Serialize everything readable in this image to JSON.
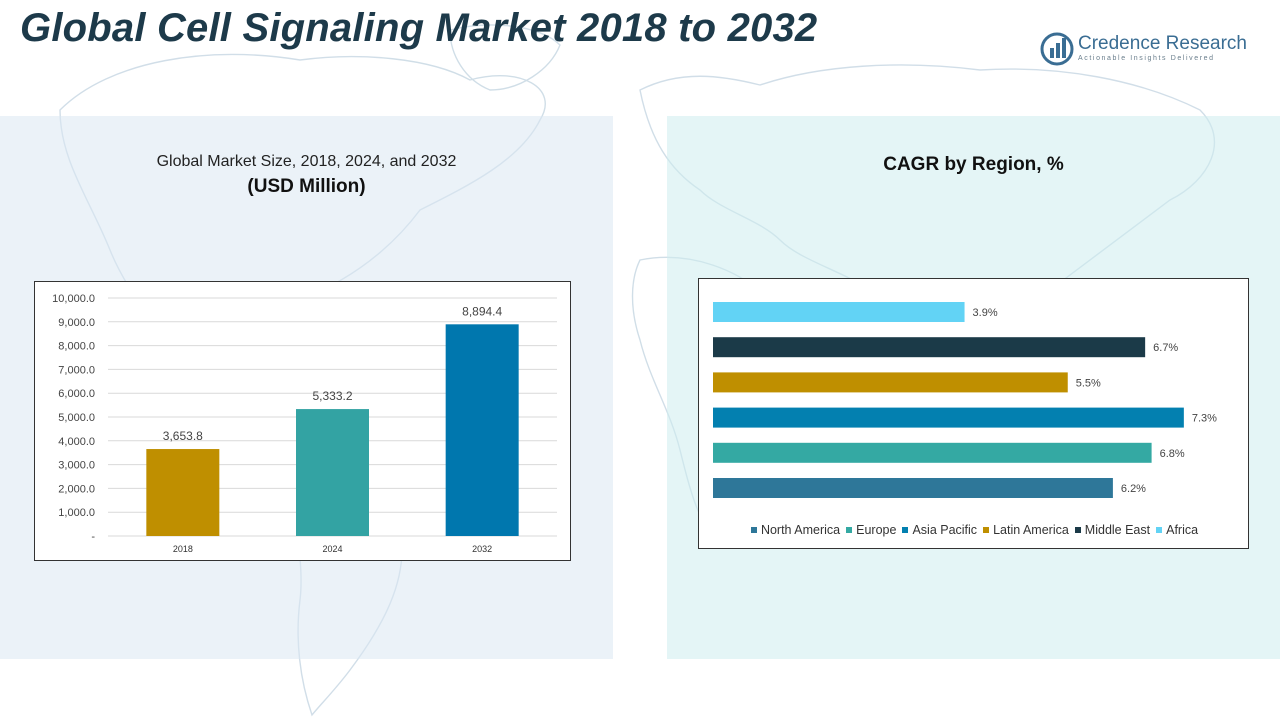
{
  "header": {
    "title": "Global Cell Signaling Market 2018 to 2032",
    "logo_name": "Credence Research",
    "logo_tagline": "Actionable Insights Delivered"
  },
  "left_panel": {
    "title_line1": "Global Market Size, 2018, 2024, and 2032",
    "title_line2": "(USD Million)"
  },
  "right_panel": {
    "title": "CAGR by Region, %"
  },
  "chart_data": [
    {
      "type": "bar",
      "categories": [
        "2018",
        "2024",
        "2032"
      ],
      "values": [
        3653.8,
        5333.2,
        8894.4
      ],
      "value_labels": [
        "3,653.8",
        "5,333.2",
        "8,894.4"
      ],
      "colors": [
        "#bf8f00",
        "#33a3a3",
        "#0077ae"
      ],
      "ylim": [
        0,
        10000
      ],
      "yticks": [
        0,
        1000,
        2000,
        3000,
        4000,
        5000,
        6000,
        7000,
        8000,
        9000,
        10000
      ],
      "ytick_labels": [
        "-",
        "1,000.0",
        "2,000.0",
        "3,000.0",
        "4,000.0",
        "5,000.0",
        "6,000.0",
        "7,000.0",
        "8,000.0",
        "9,000.0",
        "10,000.0"
      ],
      "grid": true
    },
    {
      "type": "bar",
      "orientation": "horizontal",
      "categories": [
        "North America",
        "Europe",
        "Asia Pacific",
        "Latin America",
        "Middle East",
        "Africa"
      ],
      "values": [
        6.2,
        6.8,
        7.3,
        5.5,
        6.7,
        3.9
      ],
      "value_labels": [
        "6.2%",
        "6.8%",
        "7.3%",
        "5.5%",
        "6.7%",
        "3.9%"
      ],
      "colors": [
        "#2e7799",
        "#34a9a3",
        "#0380b0",
        "#bf8f00",
        "#1b3a48",
        "#62d3f5"
      ],
      "xlim": [
        0,
        8
      ],
      "legend_position": "bottom",
      "grid": false
    }
  ]
}
